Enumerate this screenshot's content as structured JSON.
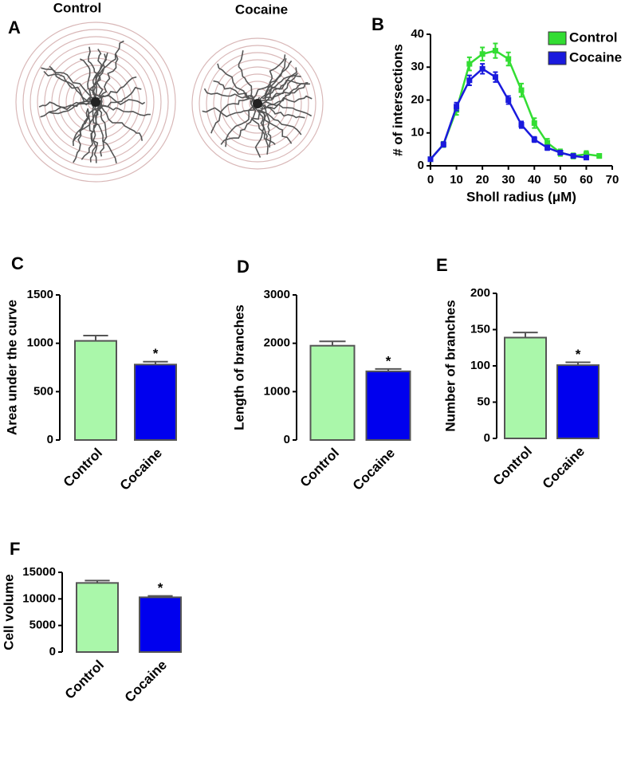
{
  "chart_data": [
    {
      "type": "image",
      "panel_label": "A",
      "images": [
        "Control",
        "Cocaine"
      ]
    },
    {
      "type": "line",
      "panel_label": "B",
      "x": [
        0,
        5,
        10,
        15,
        20,
        25,
        30,
        35,
        40,
        45,
        50,
        55,
        60,
        65
      ],
      "series": [
        {
          "name": "Control",
          "color": "#33dd33",
          "values": [
            2,
            6.5,
            17,
            31,
            34,
            35,
            32.5,
            23,
            13,
            7,
            4,
            3,
            3.5,
            3
          ],
          "errors": [
            0.5,
            0.8,
            1.5,
            2,
            2,
            2.2,
            2,
            2,
            1.5,
            1.2,
            1,
            0.8,
            1,
            0.6
          ]
        },
        {
          "name": "Cocaine",
          "color": "#1a1add",
          "values": [
            2,
            6.5,
            18,
            26,
            29.5,
            27,
            20,
            12.5,
            8,
            5.5,
            4,
            3,
            2.5,
            null
          ],
          "errors": [
            0.5,
            0.7,
            1.2,
            1.5,
            1.5,
            1.5,
            1.2,
            1,
            0.8,
            0.7,
            0.6,
            0.5,
            0.5,
            null
          ]
        }
      ],
      "xlabel": "Sholl radius (μM)",
      "ylabel": "# of intersections",
      "xlim": [
        0,
        70
      ],
      "xticks": [
        0,
        10,
        20,
        30,
        40,
        50,
        60,
        70
      ],
      "ylim": [
        0,
        40
      ],
      "yticks": [
        0,
        10,
        20,
        30,
        40
      ],
      "legend": "upper right"
    },
    {
      "type": "bar",
      "panel_label": "C",
      "categories": [
        "Control",
        "Cocaine"
      ],
      "values": [
        1025,
        780
      ],
      "errors": [
        55,
        30
      ],
      "colors": [
        "#aaf7aa",
        "#0000ee"
      ],
      "ylabel": "Area under the curve",
      "ylim": [
        0,
        1500
      ],
      "yticks": [
        0,
        500,
        1000,
        1500
      ],
      "significance_labels": [
        null,
        "*"
      ]
    },
    {
      "type": "bar",
      "panel_label": "D",
      "categories": [
        "Control",
        "Cocaine"
      ],
      "values": [
        1950,
        1420
      ],
      "errors": [
        90,
        50
      ],
      "colors": [
        "#aaf7aa",
        "#0000ee"
      ],
      "ylabel": "Length of branches",
      "ylim": [
        0,
        3000
      ],
      "yticks": [
        0,
        1000,
        2000,
        3000
      ],
      "significance_labels": [
        null,
        "*"
      ]
    },
    {
      "type": "bar",
      "panel_label": "E",
      "categories": [
        "Control",
        "Cocaine"
      ],
      "values": [
        139,
        101
      ],
      "errors": [
        7,
        4
      ],
      "colors": [
        "#aaf7aa",
        "#0000ee"
      ],
      "ylabel": "Number of branches",
      "ylim": [
        0,
        200
      ],
      "yticks": [
        0,
        50,
        100,
        150,
        200
      ],
      "significance_labels": [
        null,
        "*"
      ]
    },
    {
      "type": "bar",
      "panel_label": "F",
      "categories": [
        "Control",
        "Cocaine"
      ],
      "values": [
        13000,
        10300
      ],
      "errors": [
        450,
        250
      ],
      "colors": [
        "#aaf7aa",
        "#0000ee"
      ],
      "ylabel": "Cell volume",
      "ylim": [
        0,
        15000
      ],
      "yticks": [
        0,
        5000,
        10000,
        15000
      ],
      "significance_labels": [
        null,
        "*"
      ]
    }
  ]
}
